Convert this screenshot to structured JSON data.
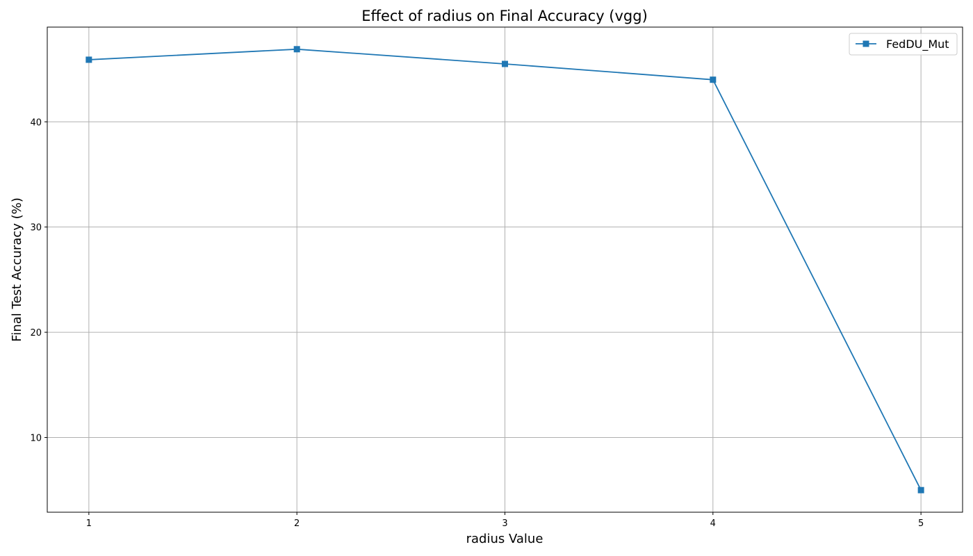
{
  "chart_data": {
    "type": "line",
    "title": "Effect of radius on Final Accuracy (vgg)",
    "xlabel": "radius Value",
    "ylabel": "Final Test Accuracy (%)",
    "x": [
      1,
      2,
      3,
      4,
      5
    ],
    "xticks": [
      "1",
      "2",
      "3",
      "4",
      "5"
    ],
    "yticks": [
      "10",
      "20",
      "30",
      "40"
    ],
    "ytick_values": [
      10,
      20,
      30,
      40
    ],
    "xlim": [
      0.8,
      5.2
    ],
    "ylim": [
      2.9,
      49.0
    ],
    "grid": true,
    "legend_position": "top-right",
    "series": [
      {
        "name": "FedDU_Mut",
        "color": "#1f77b4",
        "marker": "square",
        "values": [
          45.9,
          46.9,
          45.5,
          44.0,
          5.0
        ]
      }
    ]
  }
}
